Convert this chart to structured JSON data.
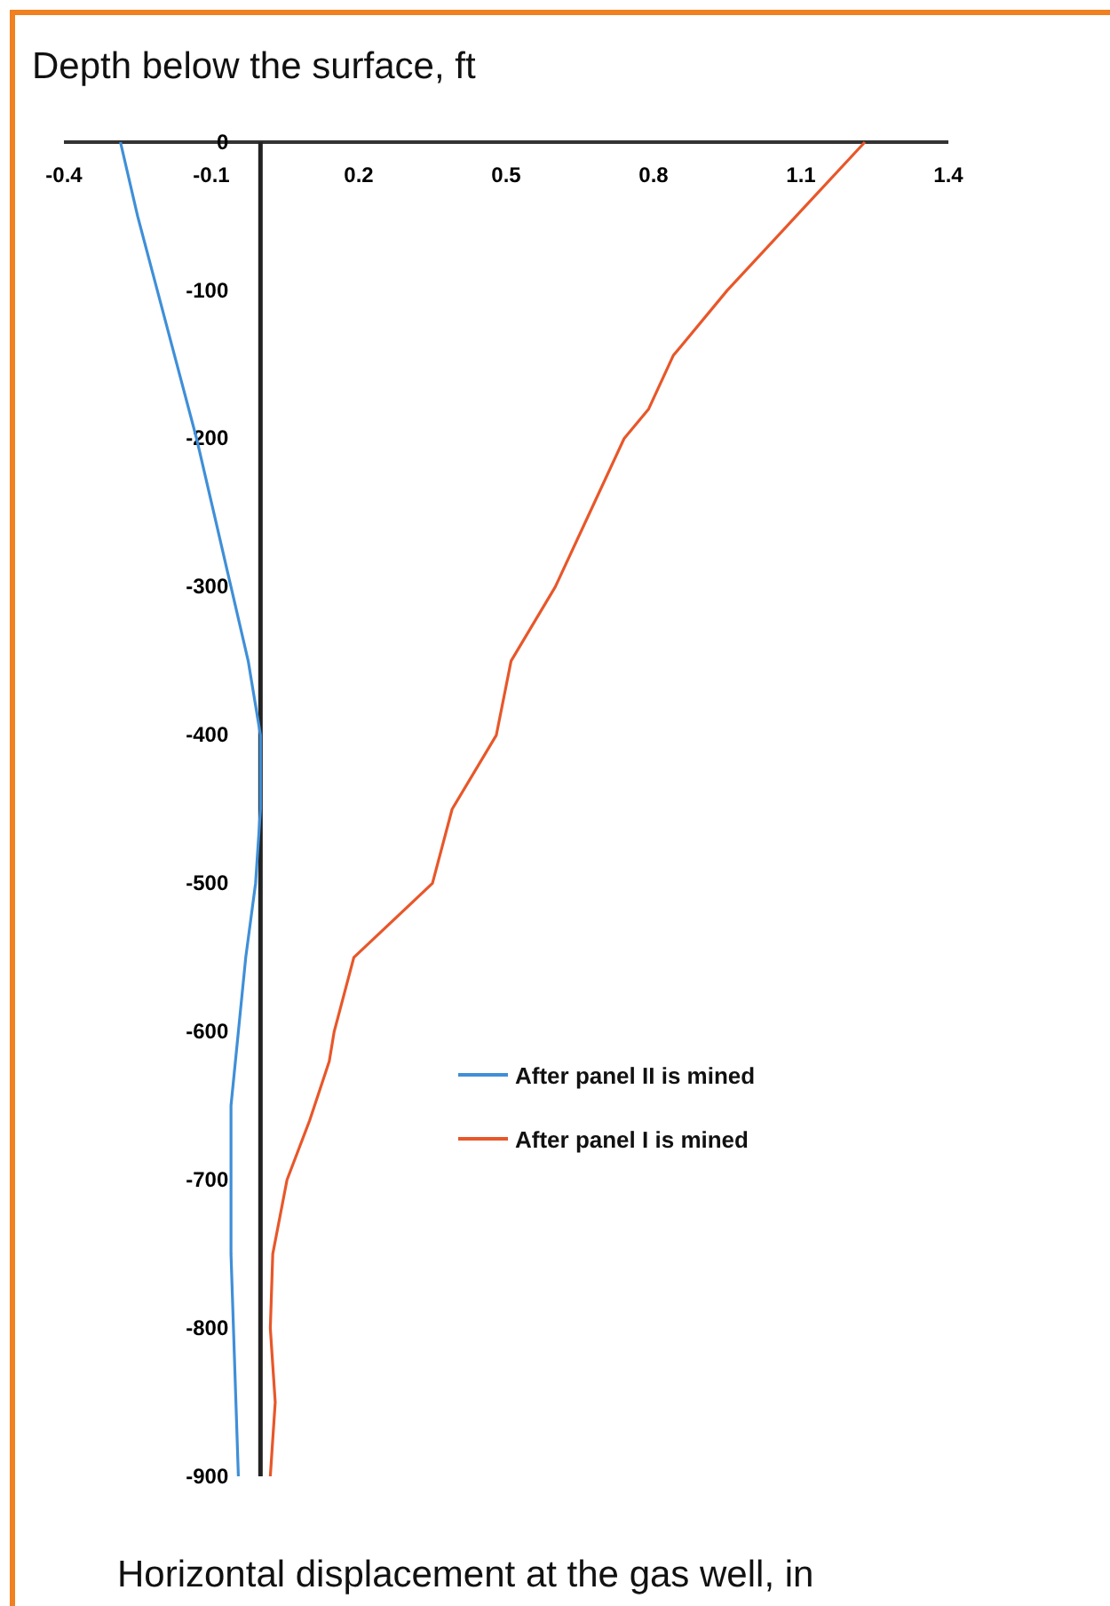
{
  "chart_data": {
    "type": "line",
    "ylabel": "Depth below the surface, ft",
    "xlabel": "Horizontal displacement at the gas well, in",
    "xlim": [
      -0.4,
      1.4
    ],
    "xticks": [
      -0.4,
      -0.1,
      0.2,
      0.5,
      0.8,
      1.1,
      1.4
    ],
    "ylim": [
      -900,
      0
    ],
    "yticks": [
      0,
      -100,
      -200,
      -300,
      -400,
      -500,
      -600,
      -700,
      -800,
      -900
    ],
    "grid": false,
    "legend": "right",
    "marker": "none",
    "line_style": "solid",
    "series": [
      {
        "name": "After panel II is mined",
        "color": "#3f8fd8",
        "x": [
          -0.285,
          -0.25,
          -0.21,
          -0.17,
          -0.13,
          -0.095,
          -0.06,
          -0.025,
          0,
          0,
          -0.01,
          -0.03,
          -0.045,
          -0.06,
          -0.06,
          -0.06,
          -0.055,
          -0.05,
          -0.045
        ],
        "values": [
          0,
          -50,
          -100,
          -150,
          -200,
          -250,
          -300,
          -350,
          -400,
          -450,
          -500,
          -550,
          -600,
          -650,
          -700,
          -750,
          -800,
          -850,
          -900
        ]
      },
      {
        "name": "After panel I is mined",
        "color": "#e8572a",
        "x": [
          1.23,
          1.09,
          0.95,
          0.84,
          0.79,
          0.74,
          0.67,
          0.6,
          0.51,
          0.48,
          0.39,
          0.35,
          0.19,
          0.15,
          0.14,
          0.1,
          0.054,
          0.025,
          0.02,
          0.03,
          0.02
        ],
        "values": [
          0,
          -50,
          -100,
          -144,
          -180,
          -200,
          -250,
          -300,
          -350,
          -400,
          -450,
          -500,
          -550,
          -600,
          -620,
          -660,
          -700,
          -750,
          -800,
          -850,
          -900
        ]
      }
    ]
  }
}
